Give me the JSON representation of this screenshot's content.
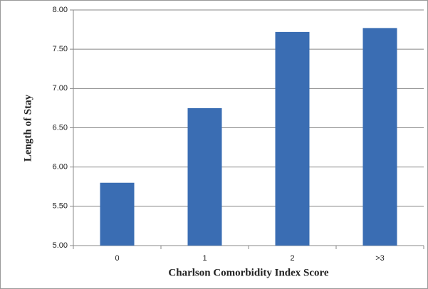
{
  "chart_data": {
    "type": "bar",
    "x_label": "Charlson Comorbidity Index Score",
    "y_label": "Length of Stay",
    "categories": [
      "0",
      "1",
      "2",
      ">3"
    ],
    "values": [
      5.8,
      6.75,
      7.72,
      7.77
    ],
    "color": "#3a6db3",
    "ylim": [
      5,
      8
    ],
    "yticks": [
      {
        "value": 5,
        "label": "5.00"
      },
      {
        "value": 5.5,
        "label": "5.50"
      },
      {
        "value": 6,
        "label": "6.00"
      },
      {
        "value": 6.5,
        "label": "6.50"
      },
      {
        "value": 7,
        "label": "7.00"
      },
      {
        "value": 7.5,
        "label": "7.50"
      },
      {
        "value": 8,
        "label": "8.00"
      }
    ],
    "grid": true
  }
}
